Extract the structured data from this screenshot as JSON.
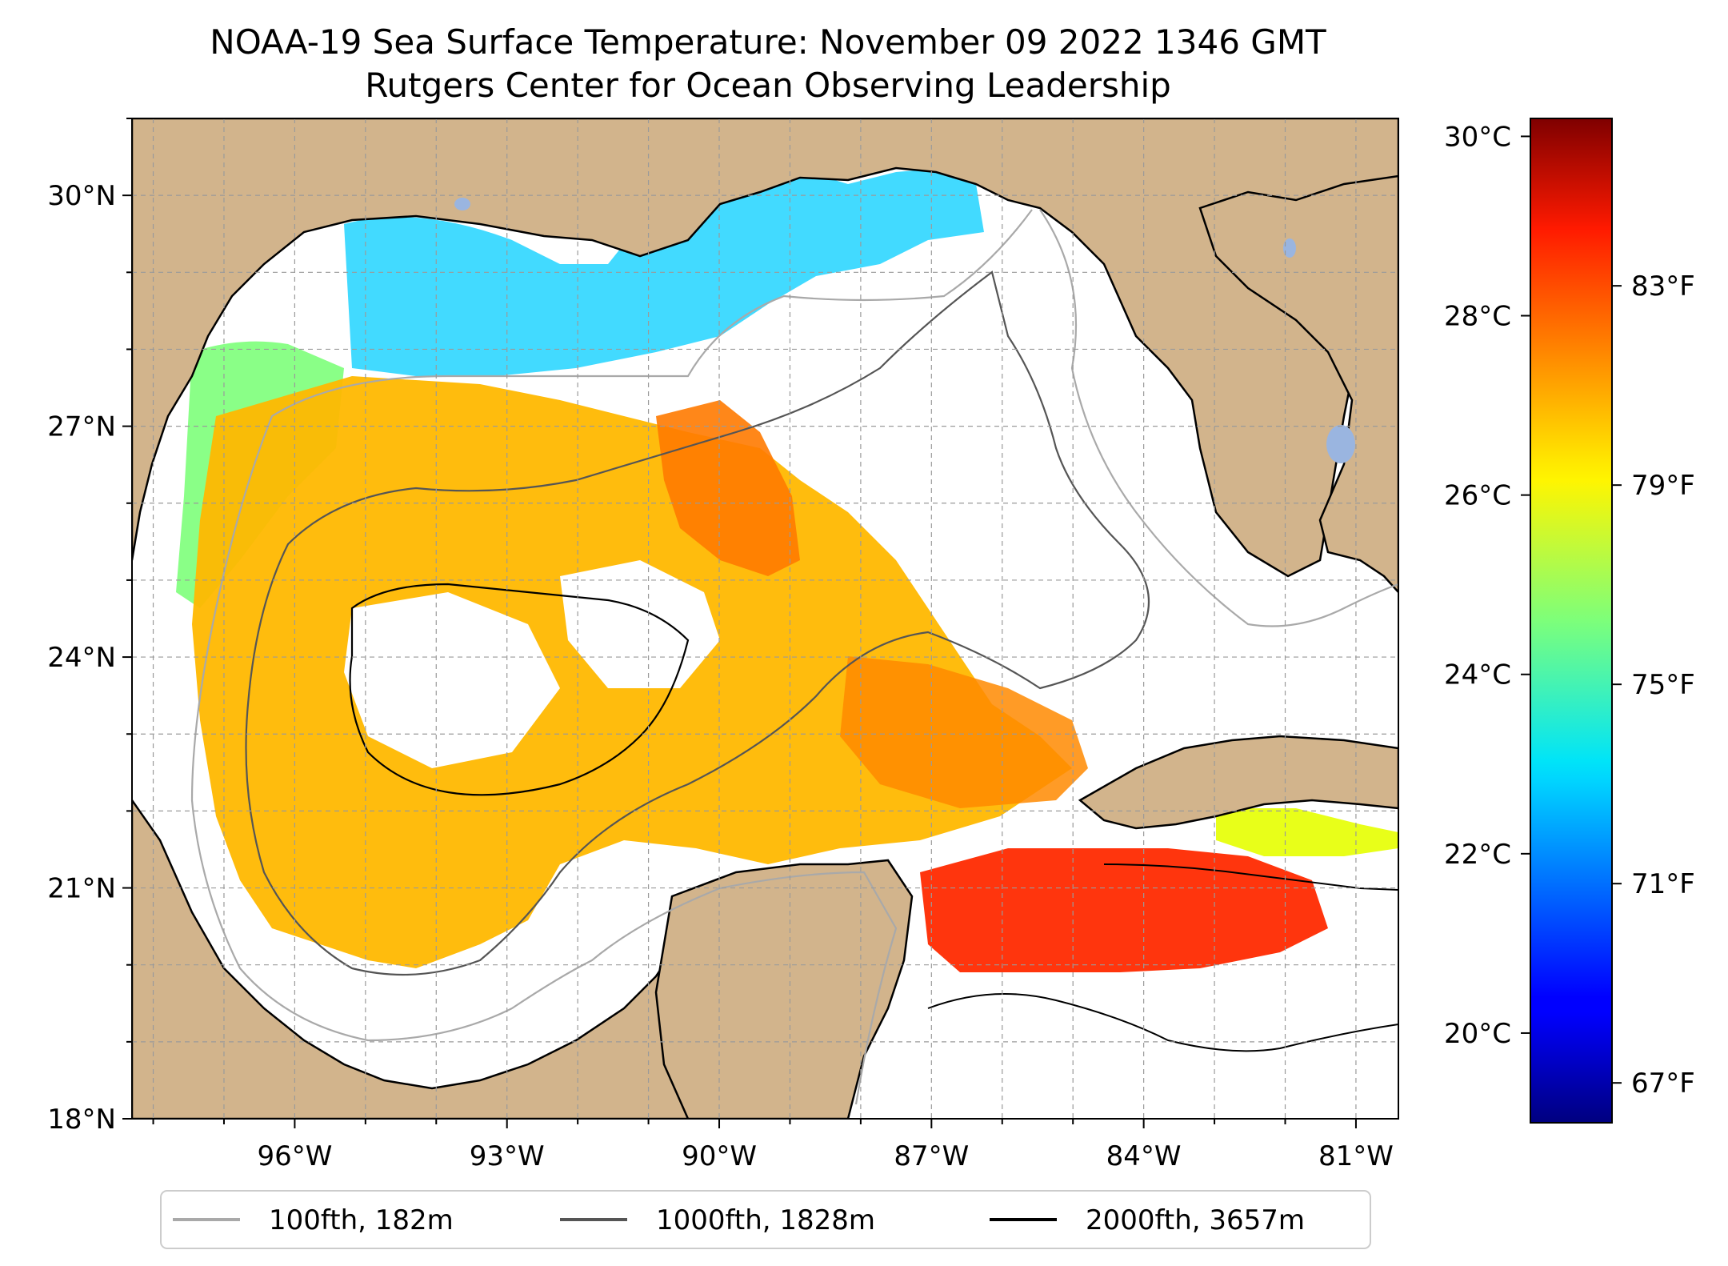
{
  "title": {
    "line1": "NOAA-19 Sea Surface Temperature: November 09 2022 1346 GMT",
    "line2": "Rutgers Center for Ocean Observing Leadership"
  },
  "map": {
    "lon_labels": [
      "96°W",
      "93°W",
      "90°W",
      "87°W",
      "84°W",
      "81°W"
    ],
    "lon_values": [
      -96,
      -93,
      -90,
      -87,
      -84,
      -81
    ],
    "lat_labels": [
      "30°N",
      "27°N",
      "24°N",
      "21°N",
      "18°N"
    ],
    "lat_values": [
      30,
      27,
      24,
      21,
      18
    ],
    "extent": {
      "lon_min": -98.3,
      "lon_max": -80.4,
      "lat_min": 18.0,
      "lat_max": 31.0
    },
    "land_color": "#d2b48c",
    "water_color": "#ffffff",
    "grid": true
  },
  "colorbar": {
    "colormap": "jet",
    "celsius_labels": [
      "30°C",
      "28°C",
      "26°C",
      "24°C",
      "22°C",
      "20°C"
    ],
    "celsius_values": [
      30,
      28,
      26,
      24,
      22,
      20
    ],
    "fahrenheit_labels": [
      "83°F",
      "79°F",
      "75°F",
      "71°F",
      "67°F"
    ],
    "fahrenheit_values": [
      83,
      79,
      75,
      71,
      67
    ],
    "range_c": [
      19.0,
      30.2
    ]
  },
  "legend": {
    "items": [
      {
        "label": "100fth, 182m",
        "color": "#a9a9a9"
      },
      {
        "label": "1000fth, 1828m",
        "color": "#555555"
      },
      {
        "label": "2000fth, 3657m",
        "color": "#000000"
      }
    ]
  }
}
